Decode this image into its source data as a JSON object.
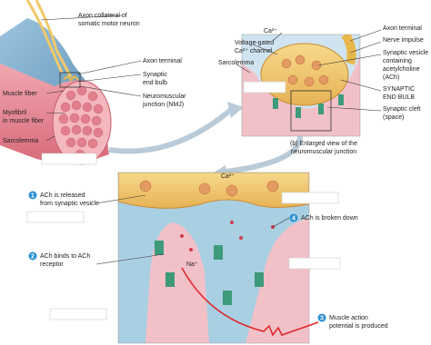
{
  "panel_a": {
    "labels": [
      {
        "lines": [
          "Axon collateral of",
          "somatic motor neuron"
        ]
      },
      {
        "lines": [
          "Axon terminal"
        ]
      },
      {
        "lines": [
          "Synaptic",
          "end bulb"
        ]
      },
      {
        "lines": [
          "Muscle fiber"
        ]
      },
      {
        "lines": [
          "Neuromuscular",
          "junction (NMJ)"
        ]
      },
      {
        "lines": [
          "Myofibril",
          "in muscle fiber"
        ]
      },
      {
        "lines": [
          "Sarcolemma"
        ]
      }
    ]
  },
  "panel_b": {
    "labels": [
      {
        "lines": [
          "Ca²⁺"
        ]
      },
      {
        "lines": [
          "Voltage-gated",
          "Ca²⁺ channel"
        ]
      },
      {
        "lines": [
          "Sarcolemma"
        ]
      },
      {
        "lines": [
          "Axon terminal"
        ]
      },
      {
        "lines": [
          "Nerve impulse"
        ]
      },
      {
        "lines": [
          "Synaptic vesicle",
          "containing",
          "acetylcholine",
          "(ACh)"
        ]
      },
      {
        "lines": [
          "SYNAPTIC",
          "END BULB"
        ]
      },
      {
        "lines": [
          "Synaptic cleft",
          "(space)"
        ]
      }
    ],
    "caption": [
      "(b) Enlarged view of the",
      "neuromuscular junction"
    ]
  },
  "panel_c": {
    "ca": "Ca²⁺",
    "na": "Na⁺",
    "steps": [
      {
        "number": "1",
        "lines": [
          "ACh is released",
          "from synaptic vesicle"
        ]
      },
      {
        "number": "2",
        "lines": [
          "ACh binds to ACh",
          "receptor"
        ]
      },
      {
        "number": "3",
        "lines": [
          "Muscle action",
          "potential is produced"
        ]
      },
      {
        "number": "4",
        "lines": [
          "ACh is broken down"
        ]
      }
    ]
  }
}
